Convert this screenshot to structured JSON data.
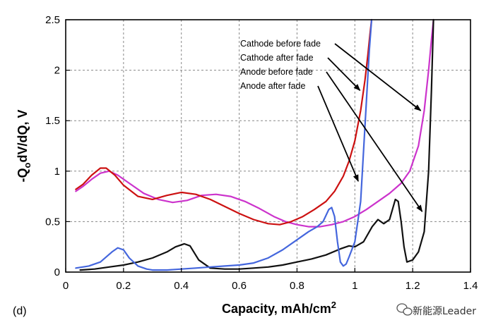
{
  "chart_data": {
    "type": "line",
    "title": "",
    "panel_label": "(d)",
    "xlabel": "Capacity, mAh/cm",
    "xlabel_superscript": "2",
    "ylabel": "-Q",
    "ylabel_subscript": "o",
    "ylabel_rest": "dV/dQ, V",
    "xlim": [
      0,
      1.4
    ],
    "ylim": [
      0,
      2.5
    ],
    "xticks": [
      "0",
      "0.2",
      "0.4",
      "0.6",
      "0.8",
      "1",
      "1.2",
      "1.4"
    ],
    "yticks": [
      "0",
      "0.5",
      "1",
      "1.5",
      "2",
      "2.5"
    ],
    "grid": true,
    "series": [
      {
        "name": "Cathode before fade",
        "color": "#cc33cc",
        "x": [
          0.035,
          0.06,
          0.09,
          0.12,
          0.15,
          0.18,
          0.22,
          0.27,
          0.32,
          0.37,
          0.42,
          0.47,
          0.52,
          0.57,
          0.62,
          0.67,
          0.72,
          0.76,
          0.8,
          0.84,
          0.88,
          0.92,
          0.96,
          1.0,
          1.04,
          1.08,
          1.12,
          1.16,
          1.19,
          1.22,
          1.24,
          1.255,
          1.265,
          1.272
        ],
        "y": [
          0.8,
          0.85,
          0.92,
          0.98,
          1.0,
          0.96,
          0.88,
          0.78,
          0.72,
          0.69,
          0.71,
          0.76,
          0.77,
          0.75,
          0.7,
          0.63,
          0.55,
          0.5,
          0.47,
          0.45,
          0.45,
          0.47,
          0.5,
          0.55,
          0.62,
          0.7,
          0.78,
          0.88,
          1.0,
          1.25,
          1.6,
          2.0,
          2.3,
          2.5
        ]
      },
      {
        "name": "Cathode after fade",
        "color": "#cc1111",
        "x": [
          0.035,
          0.06,
          0.09,
          0.12,
          0.14,
          0.17,
          0.2,
          0.25,
          0.3,
          0.35,
          0.4,
          0.45,
          0.5,
          0.55,
          0.6,
          0.65,
          0.7,
          0.74,
          0.78,
          0.82,
          0.86,
          0.9,
          0.93,
          0.96,
          0.98,
          1.0,
          1.02,
          1.035,
          1.045,
          1.052,
          1.058
        ],
        "y": [
          0.82,
          0.87,
          0.96,
          1.03,
          1.03,
          0.96,
          0.86,
          0.75,
          0.72,
          0.76,
          0.79,
          0.77,
          0.72,
          0.65,
          0.58,
          0.52,
          0.48,
          0.47,
          0.5,
          0.55,
          0.62,
          0.7,
          0.8,
          0.95,
          1.1,
          1.3,
          1.6,
          1.9,
          2.15,
          2.35,
          2.5
        ]
      },
      {
        "name": "Anode before fade",
        "color": "#111111",
        "x": [
          0.05,
          0.1,
          0.15,
          0.2,
          0.25,
          0.3,
          0.35,
          0.38,
          0.41,
          0.43,
          0.46,
          0.5,
          0.55,
          0.6,
          0.65,
          0.7,
          0.75,
          0.8,
          0.85,
          0.9,
          0.95,
          0.98,
          1.0,
          1.03,
          1.06,
          1.08,
          1.1,
          1.12,
          1.14,
          1.15,
          1.16,
          1.17,
          1.18,
          1.2,
          1.22,
          1.24,
          1.255,
          1.265,
          1.272
        ],
        "y": [
          0.02,
          0.03,
          0.05,
          0.07,
          0.1,
          0.14,
          0.2,
          0.25,
          0.28,
          0.26,
          0.12,
          0.04,
          0.03,
          0.03,
          0.04,
          0.05,
          0.07,
          0.1,
          0.13,
          0.17,
          0.23,
          0.26,
          0.25,
          0.3,
          0.45,
          0.52,
          0.48,
          0.52,
          0.72,
          0.7,
          0.5,
          0.25,
          0.1,
          0.12,
          0.2,
          0.4,
          1.0,
          1.8,
          2.5
        ]
      },
      {
        "name": "Anode after fade",
        "color": "#4466dd",
        "x": [
          0.035,
          0.08,
          0.12,
          0.16,
          0.18,
          0.2,
          0.22,
          0.25,
          0.28,
          0.3,
          0.35,
          0.4,
          0.45,
          0.5,
          0.55,
          0.6,
          0.65,
          0.7,
          0.75,
          0.8,
          0.84,
          0.87,
          0.89,
          0.91,
          0.92,
          0.93,
          0.94,
          0.95,
          0.96,
          0.97,
          0.98,
          1.0,
          1.02,
          1.03,
          1.04,
          1.05,
          1.058
        ],
        "y": [
          0.04,
          0.06,
          0.1,
          0.2,
          0.24,
          0.22,
          0.14,
          0.06,
          0.03,
          0.02,
          0.02,
          0.03,
          0.04,
          0.05,
          0.06,
          0.07,
          0.09,
          0.14,
          0.22,
          0.32,
          0.4,
          0.45,
          0.5,
          0.62,
          0.64,
          0.55,
          0.3,
          0.1,
          0.06,
          0.08,
          0.15,
          0.3,
          0.7,
          1.2,
          1.7,
          2.2,
          2.5
        ]
      }
    ],
    "annotations": [
      {
        "text": "Cathode before fade",
        "series": "Cathode before fade"
      },
      {
        "text": "Cathode after fade",
        "series": "Cathode after fade"
      },
      {
        "text": "Anode before fade",
        "series": "Anode before fade"
      },
      {
        "text": "Anode after fade",
        "series": "Anode after fade"
      }
    ]
  },
  "watermark": {
    "text": "新能源Leader",
    "icon": "wechat-icon"
  }
}
